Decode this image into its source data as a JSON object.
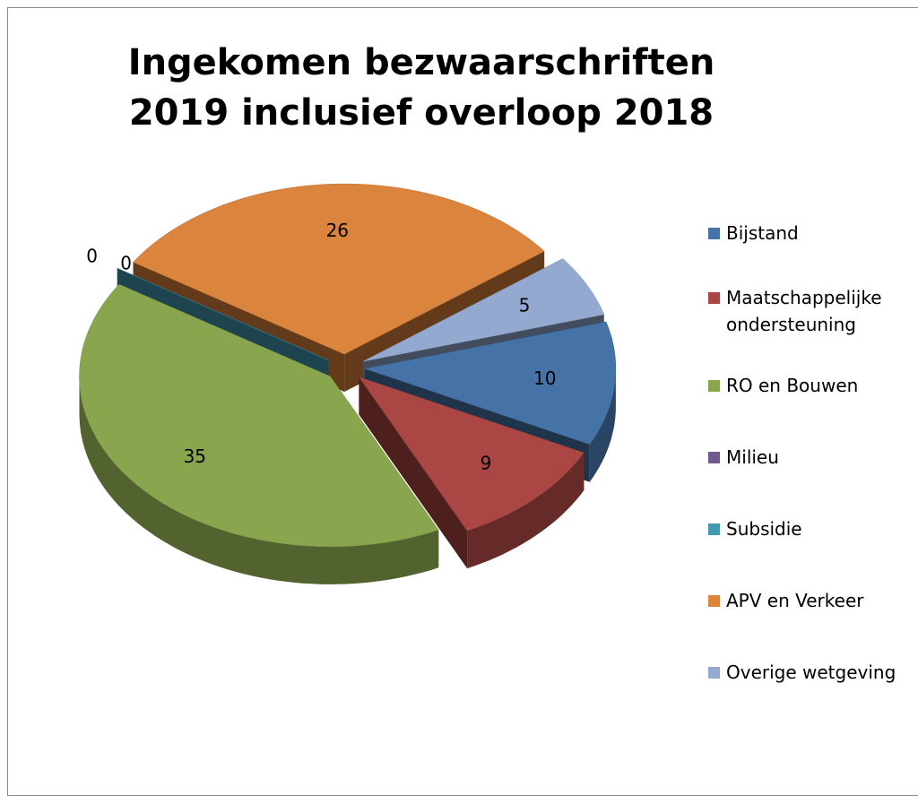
{
  "chart_data": {
    "type": "pie",
    "title": "Ingekomen bezwaarschriften 2019 inclusief overloop 2018",
    "categories": [
      "Bijstand",
      "Maatschappelijke ondersteuning",
      "RO en Bouwen",
      "Milieu",
      "Subsidie",
      "APV en Verkeer",
      "Overige wetgeving"
    ],
    "values": [
      10,
      9,
      35,
      0,
      0,
      26,
      5
    ],
    "colors": [
      "#4572a7",
      "#aa4643",
      "#89a54e",
      "#71588f",
      "#4198af",
      "#db843d",
      "#93a9cf"
    ],
    "legend": "right"
  }
}
